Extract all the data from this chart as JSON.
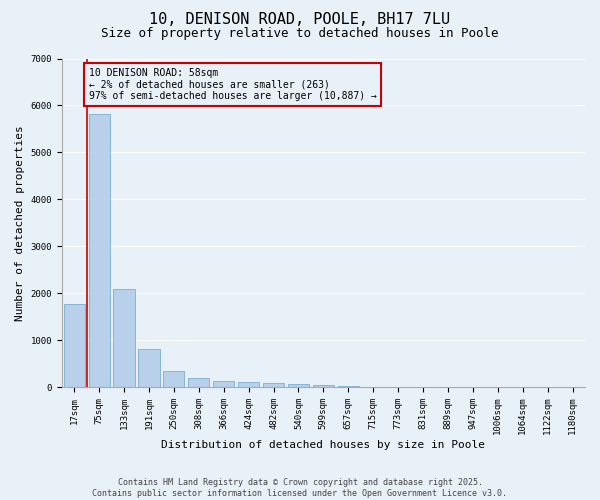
{
  "title": "10, DENISON ROAD, POOLE, BH17 7LU",
  "subtitle": "Size of property relative to detached houses in Poole",
  "xlabel": "Distribution of detached houses by size in Poole",
  "ylabel": "Number of detached properties",
  "categories": [
    "17sqm",
    "75sqm",
    "133sqm",
    "191sqm",
    "250sqm",
    "308sqm",
    "366sqm",
    "424sqm",
    "482sqm",
    "540sqm",
    "599sqm",
    "657sqm",
    "715sqm",
    "773sqm",
    "831sqm",
    "889sqm",
    "947sqm",
    "1006sqm",
    "1064sqm",
    "1122sqm",
    "1180sqm"
  ],
  "values": [
    1780,
    5820,
    2080,
    820,
    350,
    185,
    120,
    100,
    90,
    65,
    40,
    20,
    10,
    5,
    3,
    2,
    1,
    1,
    0,
    0,
    0
  ],
  "bar_color": "#b8d0ea",
  "bar_edge_color": "#7aafd4",
  "marker_color": "#cc0000",
  "annotation_text": "10 DENISON ROAD: 58sqm\n← 2% of detached houses are smaller (263)\n97% of semi-detached houses are larger (10,887) →",
  "annotation_box_color": "#cc0000",
  "ylim": [
    0,
    7000
  ],
  "yticks": [
    0,
    1000,
    2000,
    3000,
    4000,
    5000,
    6000,
    7000
  ],
  "footer": "Contains HM Land Registry data © Crown copyright and database right 2025.\nContains public sector information licensed under the Open Government Licence v3.0.",
  "bg_color": "#e8f0f8",
  "grid_color": "#ffffff",
  "title_fontsize": 11,
  "subtitle_fontsize": 9,
  "label_fontsize": 8,
  "tick_fontsize": 6.5,
  "footer_fontsize": 6,
  "ann_fontsize": 7
}
